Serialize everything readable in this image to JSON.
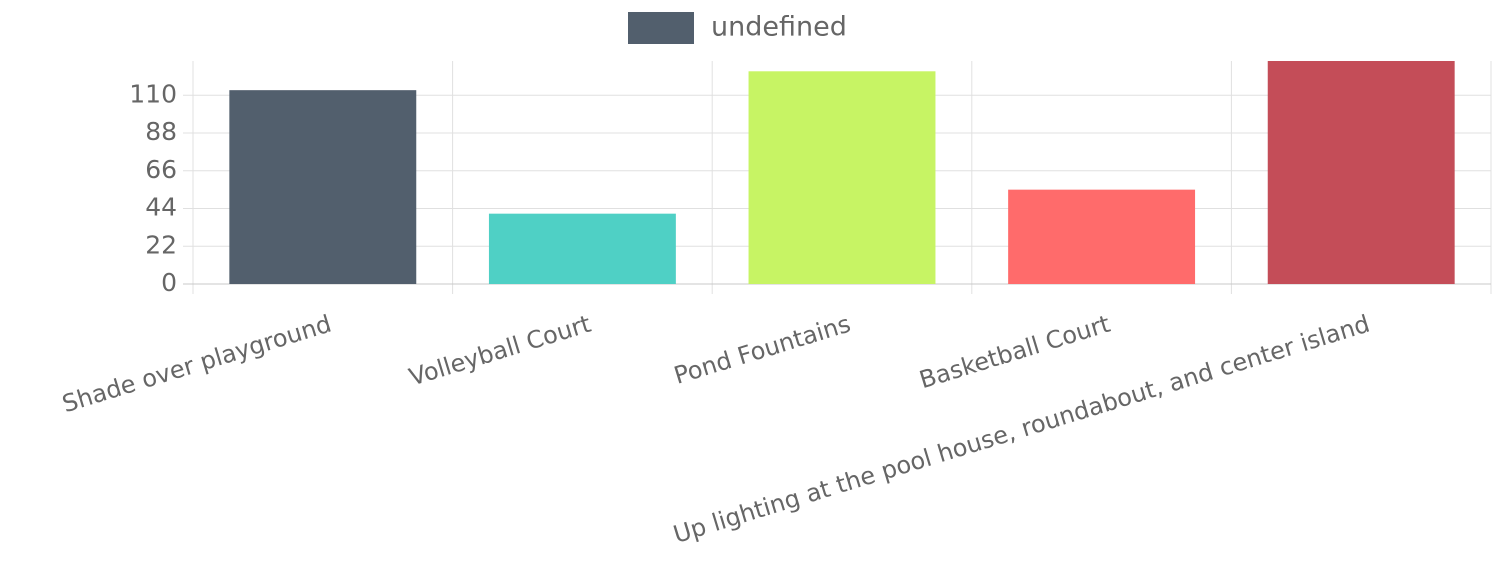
{
  "chart_data": {
    "type": "bar",
    "legend_label": "undefined",
    "legend_color": "#525f6d",
    "categories": [
      "Shade over playground",
      "Volleyball Court",
      "Pond Fountains",
      "Basketball Court",
      "Up lighting at the pool house, roundabout, and center island"
    ],
    "values": [
      113,
      41,
      124,
      55,
      130
    ],
    "colors": [
      "#525f6d",
      "#4fd0c5",
      "#c7f464",
      "#ff6b6b",
      "#c44d58"
    ],
    "ylim": [
      0,
      130
    ],
    "yticks": [
      0,
      22,
      44,
      66,
      88,
      110
    ],
    "grid": true
  }
}
